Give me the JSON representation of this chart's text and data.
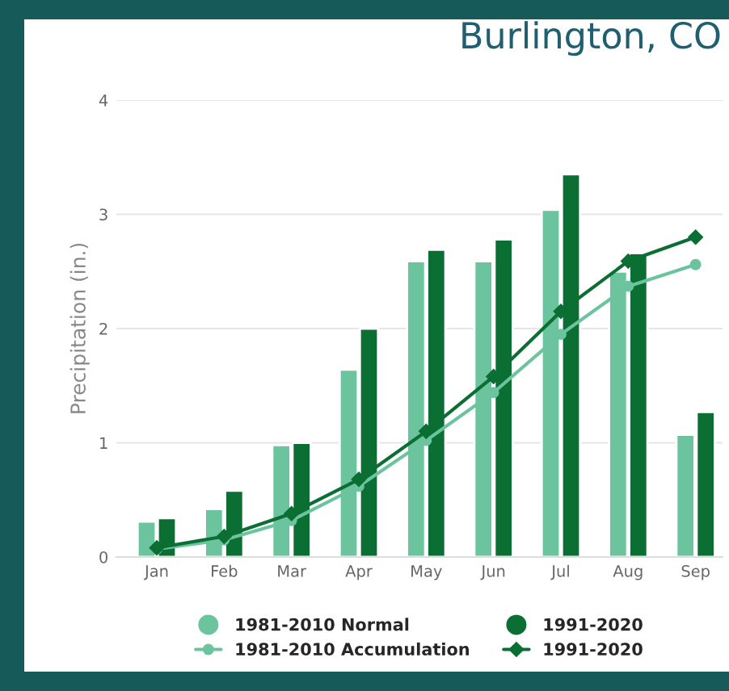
{
  "chart_data": {
    "type": "bar",
    "title": "Burlington, CO",
    "ylabel": "Precipitation (in.)",
    "categories": [
      "Jan",
      "Feb",
      "Mar",
      "Apr",
      "May",
      "Jun",
      "Jul",
      "Aug",
      "Sep"
    ],
    "series": [
      {
        "name": "1981-2010 Normal",
        "color": "#6cc49e",
        "values": [
          0.31,
          0.42,
          0.98,
          1.64,
          2.59,
          2.59,
          3.04,
          2.5,
          1.07
        ]
      },
      {
        "name": "1991-2020",
        "color": "#0b6e32",
        "values": [
          0.34,
          0.58,
          1.0,
          2.0,
          2.69,
          2.78,
          3.35,
          2.66,
          1.27
        ]
      },
      {
        "name": "1981-2010 Accumulation",
        "type": "line",
        "marker": "circle",
        "color": "#6cc49e",
        "values": [
          0.07,
          0.15,
          0.32,
          0.62,
          1.02,
          1.44,
          1.95,
          2.37,
          2.56
        ]
      },
      {
        "name": "1991-2020",
        "type": "line",
        "marker": "diamond",
        "color": "#0b6e32",
        "values": [
          0.08,
          0.18,
          0.38,
          0.68,
          1.1,
          1.58,
          2.15,
          2.59,
          2.8
        ]
      }
    ],
    "ylim": [
      0,
      4
    ],
    "yticks": [
      0,
      1,
      2,
      3,
      4
    ],
    "grid": "y",
    "legend": "bottom",
    "line_style": "solid"
  }
}
